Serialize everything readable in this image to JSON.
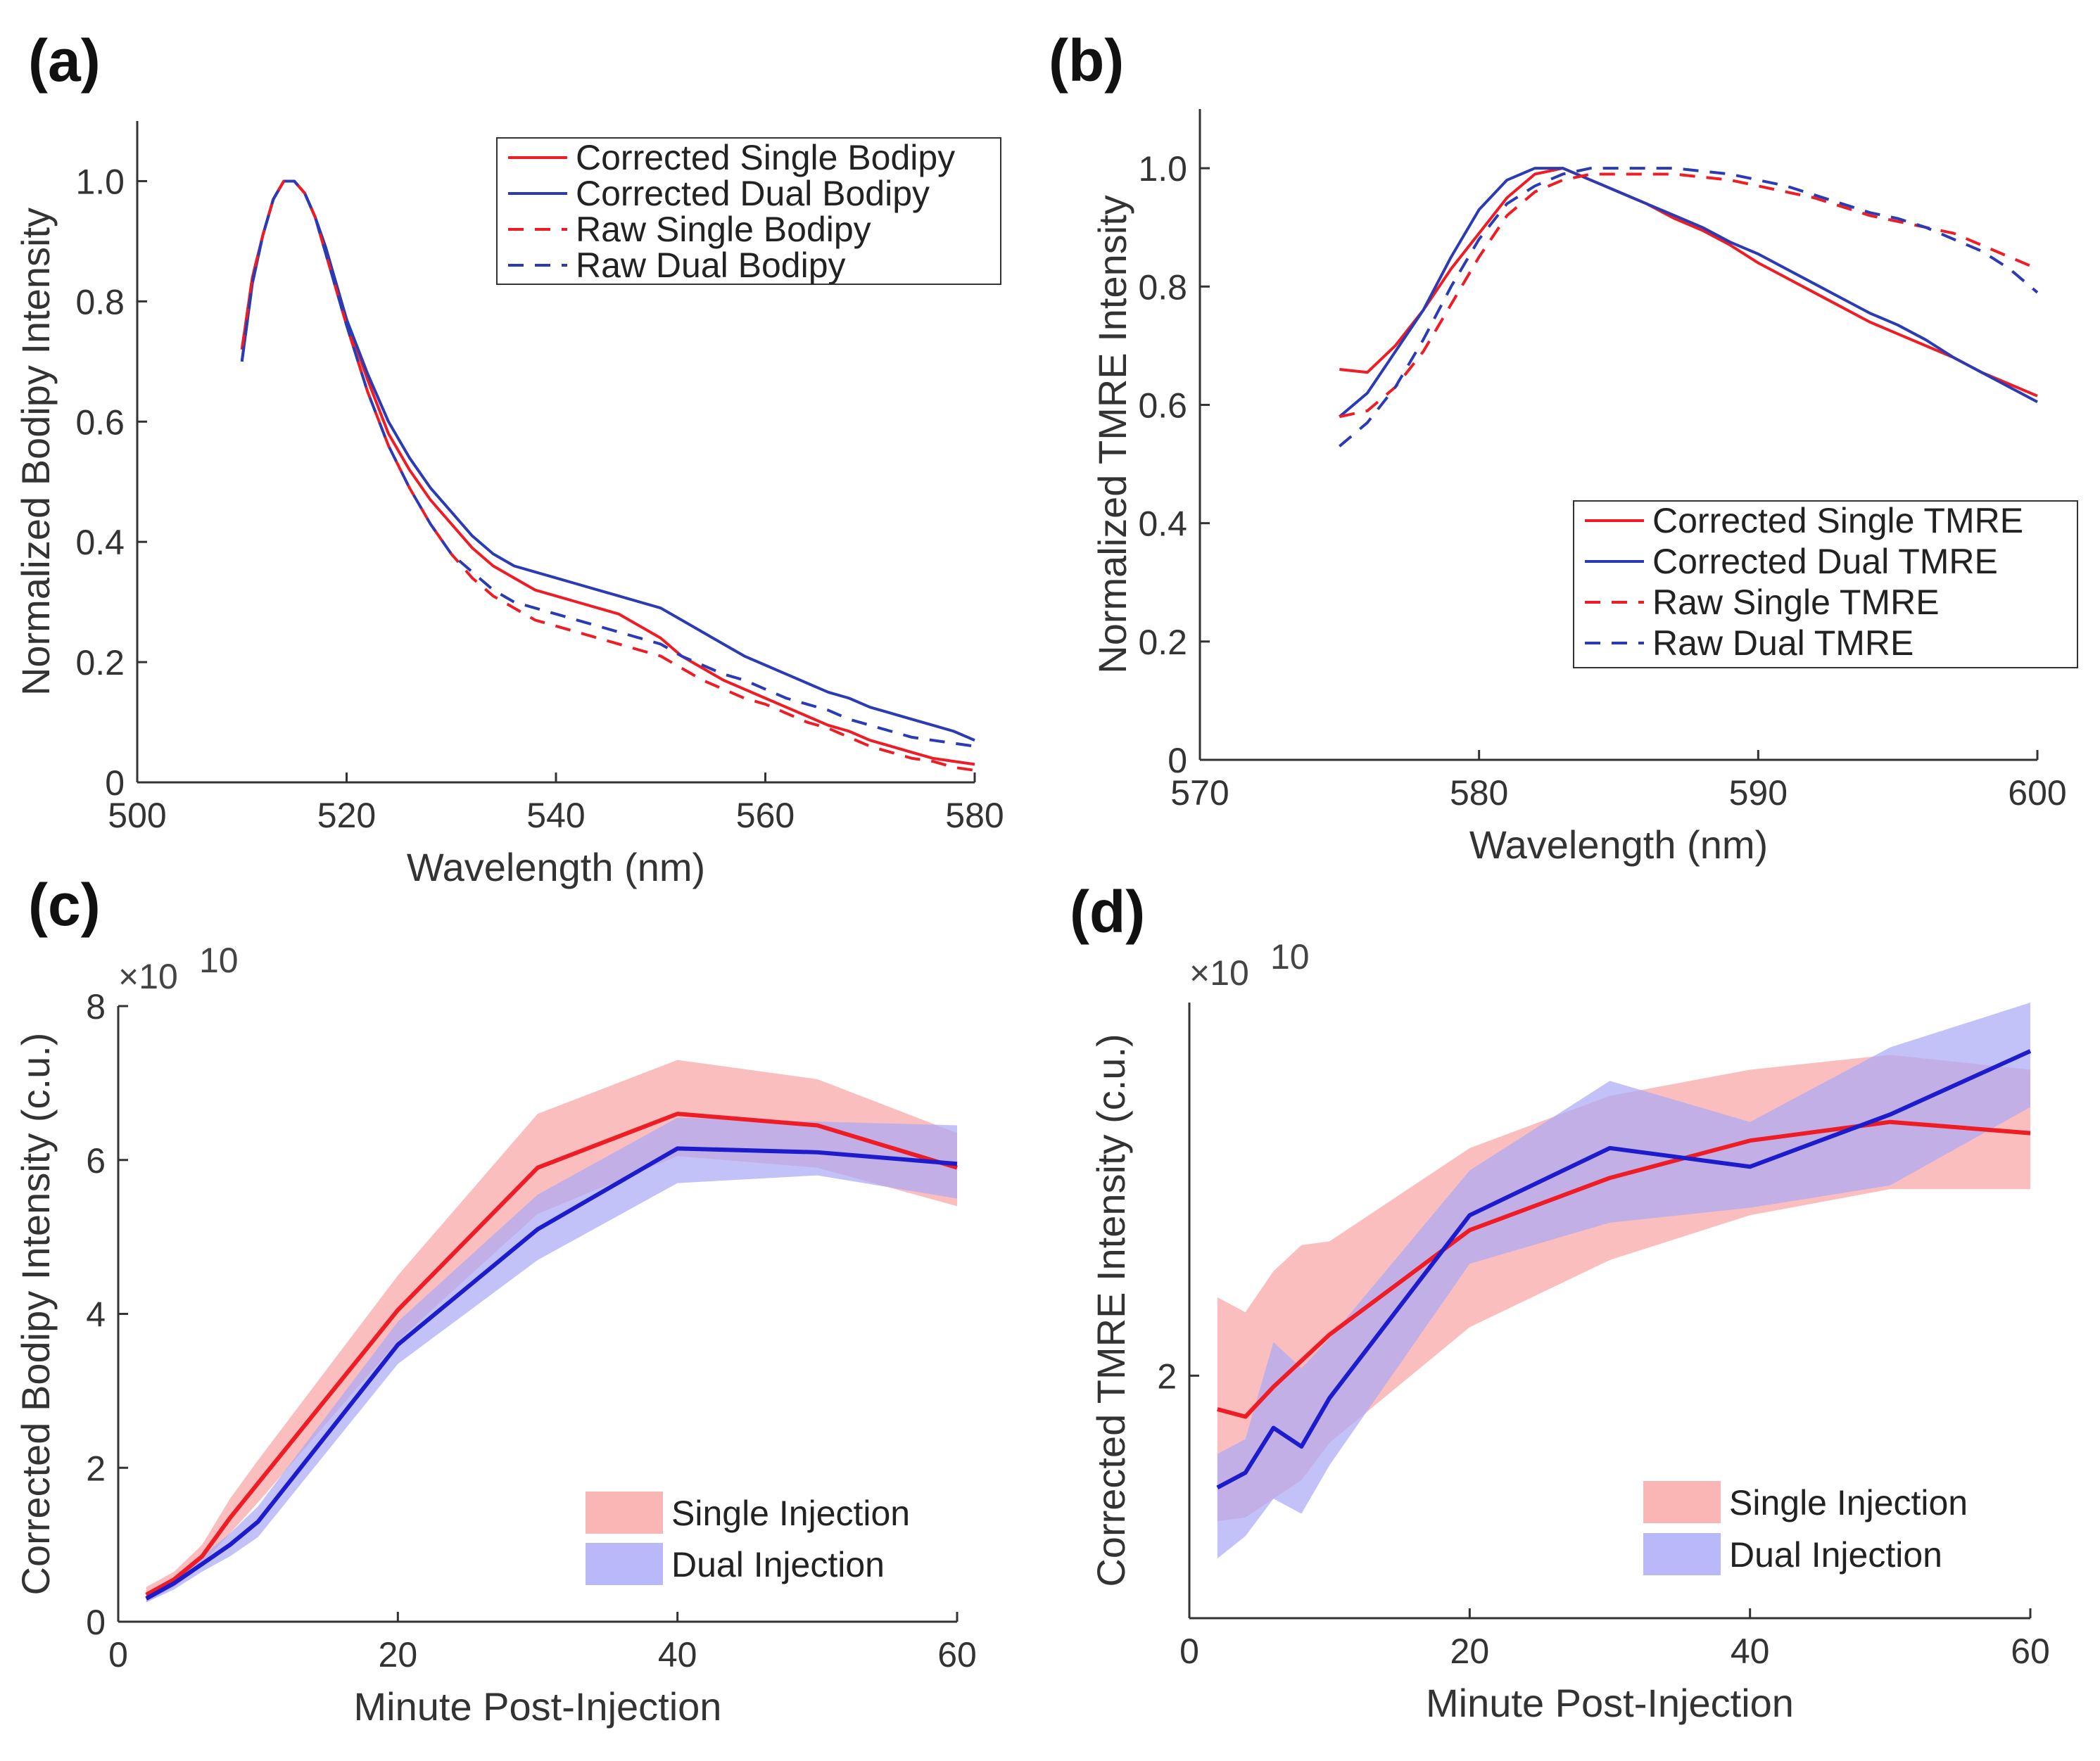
{
  "chart_data": [
    {
      "panel": "(a)",
      "type": "line",
      "xlabel": "Wavelength (nm)",
      "ylabel": "Normalized Bodipy Intensity",
      "xlim": [
        500,
        580
      ],
      "ylim": [
        0,
        1.1
      ],
      "xticks": [
        500,
        520,
        540,
        560,
        580
      ],
      "yticks": [
        0,
        0.2,
        0.4,
        0.6,
        0.8,
        1.0
      ],
      "xtick_labels": [
        "500",
        "520",
        "540",
        "560",
        "580"
      ],
      "ytick_labels": [
        "0",
        "0.2",
        "0.4",
        "0.6",
        "0.8",
        "1.0"
      ],
      "legend_position": "top-right",
      "series": [
        {
          "name": "Corrected Single Bodipy",
          "color": "#ee1c25",
          "dash": "solid",
          "x": [
            510,
            511,
            512,
            513,
            514,
            515,
            516,
            517,
            518,
            519,
            520,
            522,
            524,
            526,
            528,
            530,
            532,
            534,
            536,
            538,
            540,
            542,
            544,
            546,
            548,
            550,
            552,
            554,
            556,
            558,
            560,
            562,
            564,
            566,
            568,
            570,
            572,
            574,
            576,
            578,
            580
          ],
          "y": [
            0.72,
            0.84,
            0.91,
            0.97,
            1.0,
            1.0,
            0.98,
            0.94,
            0.89,
            0.83,
            0.77,
            0.67,
            0.58,
            0.52,
            0.47,
            0.43,
            0.39,
            0.36,
            0.34,
            0.32,
            0.31,
            0.3,
            0.29,
            0.28,
            0.26,
            0.24,
            0.21,
            0.19,
            0.17,
            0.155,
            0.14,
            0.125,
            0.11,
            0.095,
            0.085,
            0.07,
            0.06,
            0.05,
            0.04,
            0.035,
            0.03
          ]
        },
        {
          "name": "Corrected Dual Bodipy",
          "color": "#2b3bb3",
          "dash": "solid",
          "x": [
            510,
            511,
            512,
            513,
            514,
            515,
            516,
            517,
            518,
            519,
            520,
            522,
            524,
            526,
            528,
            530,
            532,
            534,
            536,
            538,
            540,
            542,
            544,
            546,
            548,
            550,
            552,
            554,
            556,
            558,
            560,
            562,
            564,
            566,
            568,
            570,
            572,
            574,
            576,
            578,
            580
          ],
          "y": [
            0.7,
            0.83,
            0.91,
            0.97,
            1.0,
            1.0,
            0.98,
            0.94,
            0.89,
            0.83,
            0.77,
            0.68,
            0.6,
            0.54,
            0.49,
            0.45,
            0.41,
            0.38,
            0.36,
            0.35,
            0.34,
            0.33,
            0.32,
            0.31,
            0.3,
            0.29,
            0.27,
            0.25,
            0.23,
            0.21,
            0.195,
            0.18,
            0.165,
            0.15,
            0.14,
            0.125,
            0.115,
            0.105,
            0.095,
            0.085,
            0.07
          ]
        },
        {
          "name": "Raw Single Bodipy",
          "color": "#ee1c25",
          "dash": "dashed",
          "x": [
            510,
            511,
            512,
            513,
            514,
            515,
            516,
            517,
            518,
            519,
            520,
            522,
            524,
            526,
            528,
            530,
            532,
            534,
            536,
            538,
            540,
            542,
            544,
            546,
            548,
            550,
            552,
            554,
            556,
            558,
            560,
            562,
            564,
            566,
            568,
            570,
            572,
            574,
            576,
            578,
            580
          ],
          "y": [
            0.72,
            0.84,
            0.91,
            0.97,
            1.0,
            1.0,
            0.98,
            0.94,
            0.88,
            0.82,
            0.76,
            0.65,
            0.56,
            0.49,
            0.43,
            0.38,
            0.34,
            0.31,
            0.29,
            0.27,
            0.26,
            0.25,
            0.24,
            0.23,
            0.22,
            0.21,
            0.19,
            0.17,
            0.155,
            0.14,
            0.13,
            0.115,
            0.1,
            0.09,
            0.075,
            0.06,
            0.05,
            0.04,
            0.035,
            0.025,
            0.02
          ]
        },
        {
          "name": "Raw Dual Bodipy",
          "color": "#2b3bb3",
          "dash": "dashed",
          "x": [
            510,
            511,
            512,
            513,
            514,
            515,
            516,
            517,
            518,
            519,
            520,
            522,
            524,
            526,
            528,
            530,
            532,
            534,
            536,
            538,
            540,
            542,
            544,
            546,
            548,
            550,
            552,
            554,
            556,
            558,
            560,
            562,
            564,
            566,
            568,
            570,
            572,
            574,
            576,
            578,
            580
          ],
          "y": [
            0.7,
            0.83,
            0.91,
            0.97,
            1.0,
            1.0,
            0.98,
            0.94,
            0.88,
            0.82,
            0.76,
            0.65,
            0.56,
            0.49,
            0.43,
            0.38,
            0.35,
            0.32,
            0.3,
            0.29,
            0.28,
            0.27,
            0.26,
            0.25,
            0.24,
            0.23,
            0.21,
            0.195,
            0.18,
            0.17,
            0.155,
            0.14,
            0.13,
            0.12,
            0.105,
            0.095,
            0.085,
            0.075,
            0.07,
            0.065,
            0.06
          ]
        }
      ]
    },
    {
      "panel": "(b)",
      "type": "line",
      "xlabel": "Wavelength (nm)",
      "ylabel": "Normalized TMRE Intensity",
      "xlim": [
        570,
        600
      ],
      "ylim": [
        0,
        1.1
      ],
      "xticks": [
        570,
        580,
        590,
        600
      ],
      "yticks": [
        0,
        0.2,
        0.4,
        0.6,
        0.8,
        1.0
      ],
      "xtick_labels": [
        "570",
        "580",
        "590",
        "600"
      ],
      "ytick_labels": [
        "0",
        "0.2",
        "0.4",
        "0.6",
        "0.8",
        "1.0"
      ],
      "legend_position": "bottom-right",
      "series": [
        {
          "name": "Corrected Single TMRE",
          "color": "#ee1c25",
          "dash": "solid",
          "x": [
            575,
            576,
            577,
            578,
            579,
            580,
            581,
            582,
            583,
            584,
            585,
            586,
            587,
            588,
            589,
            590,
            591,
            592,
            593,
            594,
            595,
            596,
            597,
            598,
            599,
            600
          ],
          "y": [
            0.66,
            0.655,
            0.7,
            0.76,
            0.83,
            0.89,
            0.95,
            0.99,
            1.0,
            0.98,
            0.96,
            0.94,
            0.915,
            0.895,
            0.87,
            0.84,
            0.815,
            0.79,
            0.765,
            0.74,
            0.72,
            0.7,
            0.68,
            0.655,
            0.635,
            0.615
          ]
        },
        {
          "name": "Corrected Dual TMRE",
          "color": "#2b3bb3",
          "dash": "solid",
          "x": [
            575,
            576,
            577,
            578,
            579,
            580,
            581,
            582,
            583,
            584,
            585,
            586,
            587,
            588,
            589,
            590,
            591,
            592,
            593,
            594,
            595,
            596,
            597,
            598,
            599,
            600
          ],
          "y": [
            0.58,
            0.62,
            0.69,
            0.76,
            0.85,
            0.93,
            0.98,
            1.0,
            1.0,
            0.98,
            0.96,
            0.94,
            0.92,
            0.9,
            0.875,
            0.855,
            0.83,
            0.805,
            0.78,
            0.755,
            0.735,
            0.71,
            0.68,
            0.655,
            0.63,
            0.605
          ]
        },
        {
          "name": "Raw Single TMRE",
          "color": "#ee1c25",
          "dash": "dashed",
          "x": [
            575,
            576,
            577,
            578,
            579,
            580,
            581,
            582,
            583,
            584,
            585,
            586,
            587,
            588,
            589,
            590,
            591,
            592,
            593,
            594,
            595,
            596,
            597,
            598,
            599,
            600
          ],
          "y": [
            0.58,
            0.59,
            0.63,
            0.69,
            0.77,
            0.85,
            0.92,
            0.96,
            0.98,
            0.99,
            0.99,
            0.99,
            0.99,
            0.985,
            0.98,
            0.97,
            0.96,
            0.95,
            0.935,
            0.92,
            0.91,
            0.9,
            0.89,
            0.87,
            0.85,
            0.83
          ]
        },
        {
          "name": "Raw Dual TMRE",
          "color": "#2b3bb3",
          "dash": "dashed",
          "x": [
            575,
            576,
            577,
            578,
            579,
            580,
            581,
            582,
            583,
            584,
            585,
            586,
            587,
            588,
            589,
            590,
            591,
            592,
            593,
            594,
            595,
            596,
            597,
            598,
            599,
            600
          ],
          "y": [
            0.53,
            0.57,
            0.63,
            0.71,
            0.8,
            0.88,
            0.94,
            0.97,
            0.99,
            1.0,
            1.0,
            1.0,
            1.0,
            0.995,
            0.99,
            0.98,
            0.97,
            0.955,
            0.94,
            0.925,
            0.915,
            0.9,
            0.88,
            0.86,
            0.83,
            0.79
          ]
        }
      ]
    },
    {
      "panel": "(c)",
      "type": "area",
      "xlabel": "Minute Post-Injection",
      "ylabel": "Corrected Bodipy Intensity (c.u.)",
      "multiplier": "×10",
      "multiplier_exp": "10",
      "xlim": [
        0,
        60
      ],
      "ylim": [
        0,
        8
      ],
      "xticks": [
        0,
        20,
        40,
        60
      ],
      "yticks": [
        0,
        2,
        4,
        6,
        8
      ],
      "xtick_labels": [
        "0",
        "20",
        "40",
        "60"
      ],
      "ytick_labels": [
        "0",
        "2",
        "4",
        "6",
        "8"
      ],
      "legend_position": "bottom-right",
      "series": [
        {
          "name": "Single Injection",
          "color": "#ee1c25",
          "band_color": "#f9a3a3",
          "x": [
            2,
            4,
            6,
            8,
            10,
            20,
            30,
            40,
            50,
            60
          ],
          "y": [
            0.35,
            0.55,
            0.85,
            1.35,
            1.8,
            4.05,
            5.9,
            6.6,
            6.45,
            5.9
          ],
          "upper": [
            0.45,
            0.65,
            1.0,
            1.6,
            2.1,
            4.5,
            6.6,
            7.3,
            7.05,
            6.35
          ],
          "lower": [
            0.25,
            0.45,
            0.75,
            1.15,
            1.55,
            3.65,
            5.3,
            6.05,
            5.9,
            5.4
          ]
        },
        {
          "name": "Dual Injection",
          "color": "#1c1ccd",
          "band_color": "#a8a8f7",
          "x": [
            2,
            4,
            6,
            8,
            10,
            20,
            30,
            40,
            50,
            60
          ],
          "y": [
            0.3,
            0.5,
            0.75,
            1.0,
            1.3,
            3.6,
            5.1,
            6.15,
            6.1,
            5.95
          ],
          "upper": [
            0.35,
            0.58,
            0.85,
            1.15,
            1.5,
            3.9,
            5.55,
            6.55,
            6.5,
            6.45
          ],
          "lower": [
            0.25,
            0.42,
            0.65,
            0.85,
            1.1,
            3.35,
            4.7,
            5.7,
            5.8,
            5.5
          ]
        }
      ]
    },
    {
      "panel": "(d)",
      "type": "area",
      "xlabel": "Minute Post-Injection",
      "ylabel": "Corrected TMRE Intensity (c.u.)",
      "multiplier": "×10",
      "multiplier_exp": "10",
      "xlim": [
        0,
        60
      ],
      "ylim": [
        1.35,
        3.0
      ],
      "xticks": [
        0,
        20,
        40,
        60
      ],
      "yticks": [
        2
      ],
      "xtick_labels": [
        "0",
        "20",
        "40",
        "60"
      ],
      "ytick_labels": [
        "2"
      ],
      "legend_position": "bottom-right",
      "series": [
        {
          "name": "Single Injection",
          "color": "#ee1c25",
          "band_color": "#f9a3a3",
          "x": [
            2,
            4,
            6,
            8,
            10,
            20,
            30,
            40,
            50,
            60
          ],
          "y": [
            1.91,
            1.89,
            1.97,
            2.04,
            2.11,
            2.39,
            2.53,
            2.63,
            2.68,
            2.65
          ],
          "upper": [
            2.21,
            2.17,
            2.28,
            2.35,
            2.36,
            2.61,
            2.75,
            2.82,
            2.86,
            2.82
          ],
          "lower": [
            1.61,
            1.62,
            1.67,
            1.72,
            1.82,
            2.13,
            2.31,
            2.43,
            2.5,
            2.5
          ]
        },
        {
          "name": "Dual Injection",
          "color": "#1c1ccd",
          "band_color": "#a8a8f7",
          "x": [
            2,
            4,
            6,
            8,
            10,
            20,
            30,
            40,
            50,
            60
          ],
          "y": [
            1.7,
            1.74,
            1.86,
            1.81,
            1.94,
            2.43,
            2.61,
            2.56,
            2.7,
            2.87
          ],
          "upper": [
            1.79,
            1.83,
            2.09,
            2.02,
            2.1,
            2.55,
            2.79,
            2.68,
            2.88,
            3.0
          ],
          "lower": [
            1.51,
            1.57,
            1.67,
            1.63,
            1.76,
            2.3,
            2.41,
            2.45,
            2.51,
            2.72
          ]
        }
      ]
    }
  ]
}
